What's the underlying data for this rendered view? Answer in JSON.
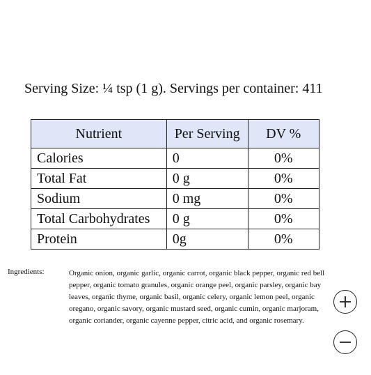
{
  "serving_line": "Serving Size: ¼ tsp (1 g). Servings per container: 411",
  "table": {
    "headers": [
      "Nutrient",
      "Per Serving",
      "DV %"
    ],
    "rows": [
      {
        "nutrient": "Calories",
        "per_serving": "0",
        "dv": "0%"
      },
      {
        "nutrient": "Total Fat",
        "per_serving": "0 g",
        "dv": "0%"
      },
      {
        "nutrient": "Sodium",
        "per_serving": "0 mg",
        "dv": "0%"
      },
      {
        "nutrient": "Total Carbohydrates",
        "per_serving": "0 g",
        "dv": "0%"
      },
      {
        "nutrient": "Protein",
        "per_serving": "0g",
        "dv": "0%"
      }
    ],
    "header_bg": "#dfe6f7"
  },
  "ingredients": {
    "label": "Ingredients:",
    "text": "Organic onion, organic garlic, organic carrot, organic black pepper, organic red bell pepper, organic tomato granules, organic orange peel, organic parsley, organic bay leaves, organic thyme, organic basil, organic celery, organic lemon peel, organic oregano, organic savory, organic mustard seed, organic cumin, organic marjoram, organic coriander, organic cayenne pepper, citric acid, and organic rosemary."
  },
  "controls": {
    "zoom_in_icon": "plus-icon",
    "zoom_out_icon": "minus-icon"
  }
}
